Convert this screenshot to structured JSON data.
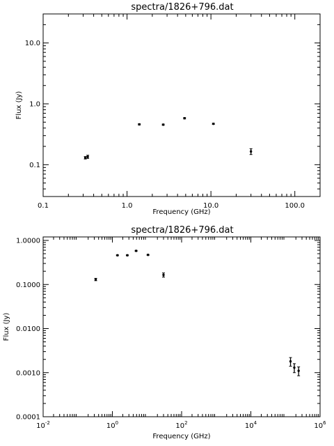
{
  "chart_data": [
    {
      "type": "scatter",
      "title": "spectra/1826+796.dat",
      "xlabel": "Frequency (GHz)",
      "ylabel": "Flux (Jy)",
      "xscale": "log",
      "yscale": "log",
      "xlim": [
        0.1,
        200
      ],
      "ylim": [
        0.03,
        30
      ],
      "xticks": [
        {
          "v": 0.1,
          "label": "0.1"
        },
        {
          "v": 1,
          "label": "1.0"
        },
        {
          "v": 10,
          "label": "10.0"
        },
        {
          "v": 100,
          "label": "100.0"
        }
      ],
      "yticks": [
        {
          "v": 0.1,
          "label": "0.1"
        },
        {
          "v": 1,
          "label": "1.0"
        },
        {
          "v": 10,
          "label": "10.0"
        }
      ],
      "grid": false,
      "series": [
        {
          "points": [
            {
              "x": 0.318,
              "y": 0.13,
              "err": 0.006
            },
            {
              "x": 0.34,
              "y": 0.135,
              "err": 0.008
            },
            {
              "x": 1.4,
              "y": 0.46,
              "err": 0.01
            },
            {
              "x": 2.7,
              "y": 0.455,
              "err": 0.01
            },
            {
              "x": 4.85,
              "y": 0.58,
              "err": 0.015
            },
            {
              "x": 10.7,
              "y": 0.47,
              "err": 0.01
            },
            {
              "x": 30,
              "y": 0.165,
              "err": 0.018
            }
          ]
        }
      ]
    },
    {
      "type": "scatter",
      "title": "spectra/1826+796.dat",
      "xlabel": "Frequency (GHz)",
      "ylabel": "Flux (Jy)",
      "xscale": "log",
      "yscale": "log",
      "xlim": [
        0.01,
        1000000
      ],
      "ylim": [
        0.0001,
        1.2
      ],
      "xticks": [
        {
          "v": 0.01,
          "label": "10",
          "exp": "-2"
        },
        {
          "v": 1,
          "label": "10",
          "exp": "0"
        },
        {
          "v": 100,
          "label": "10",
          "exp": "2"
        },
        {
          "v": 10000,
          "label": "10",
          "exp": "4"
        },
        {
          "v": 1000000,
          "label": "10",
          "exp": "6"
        }
      ],
      "yticks": [
        {
          "v": 0.0001,
          "label": "0.0001"
        },
        {
          "v": 0.001,
          "label": "0.0010"
        },
        {
          "v": 0.01,
          "label": "0.0100"
        },
        {
          "v": 0.1,
          "label": "0.1000"
        },
        {
          "v": 1,
          "label": "1.0000"
        }
      ],
      "grid": false,
      "series": [
        {
          "points": [
            {
              "x": 0.33,
              "y": 0.13,
              "err": 0.008
            },
            {
              "x": 1.4,
              "y": 0.46,
              "err": 0.01
            },
            {
              "x": 2.7,
              "y": 0.46,
              "err": 0.01
            },
            {
              "x": 4.85,
              "y": 0.58,
              "err": 0.015
            },
            {
              "x": 10.7,
              "y": 0.47,
              "err": 0.01
            },
            {
              "x": 30,
              "y": 0.165,
              "err": 0.018
            },
            {
              "x": 140000,
              "y": 0.0018,
              "err": 0.0004
            },
            {
              "x": 180000,
              "y": 0.0013,
              "err": 0.0003
            },
            {
              "x": 240000,
              "y": 0.0011,
              "err": 0.00025
            }
          ]
        }
      ]
    }
  ]
}
